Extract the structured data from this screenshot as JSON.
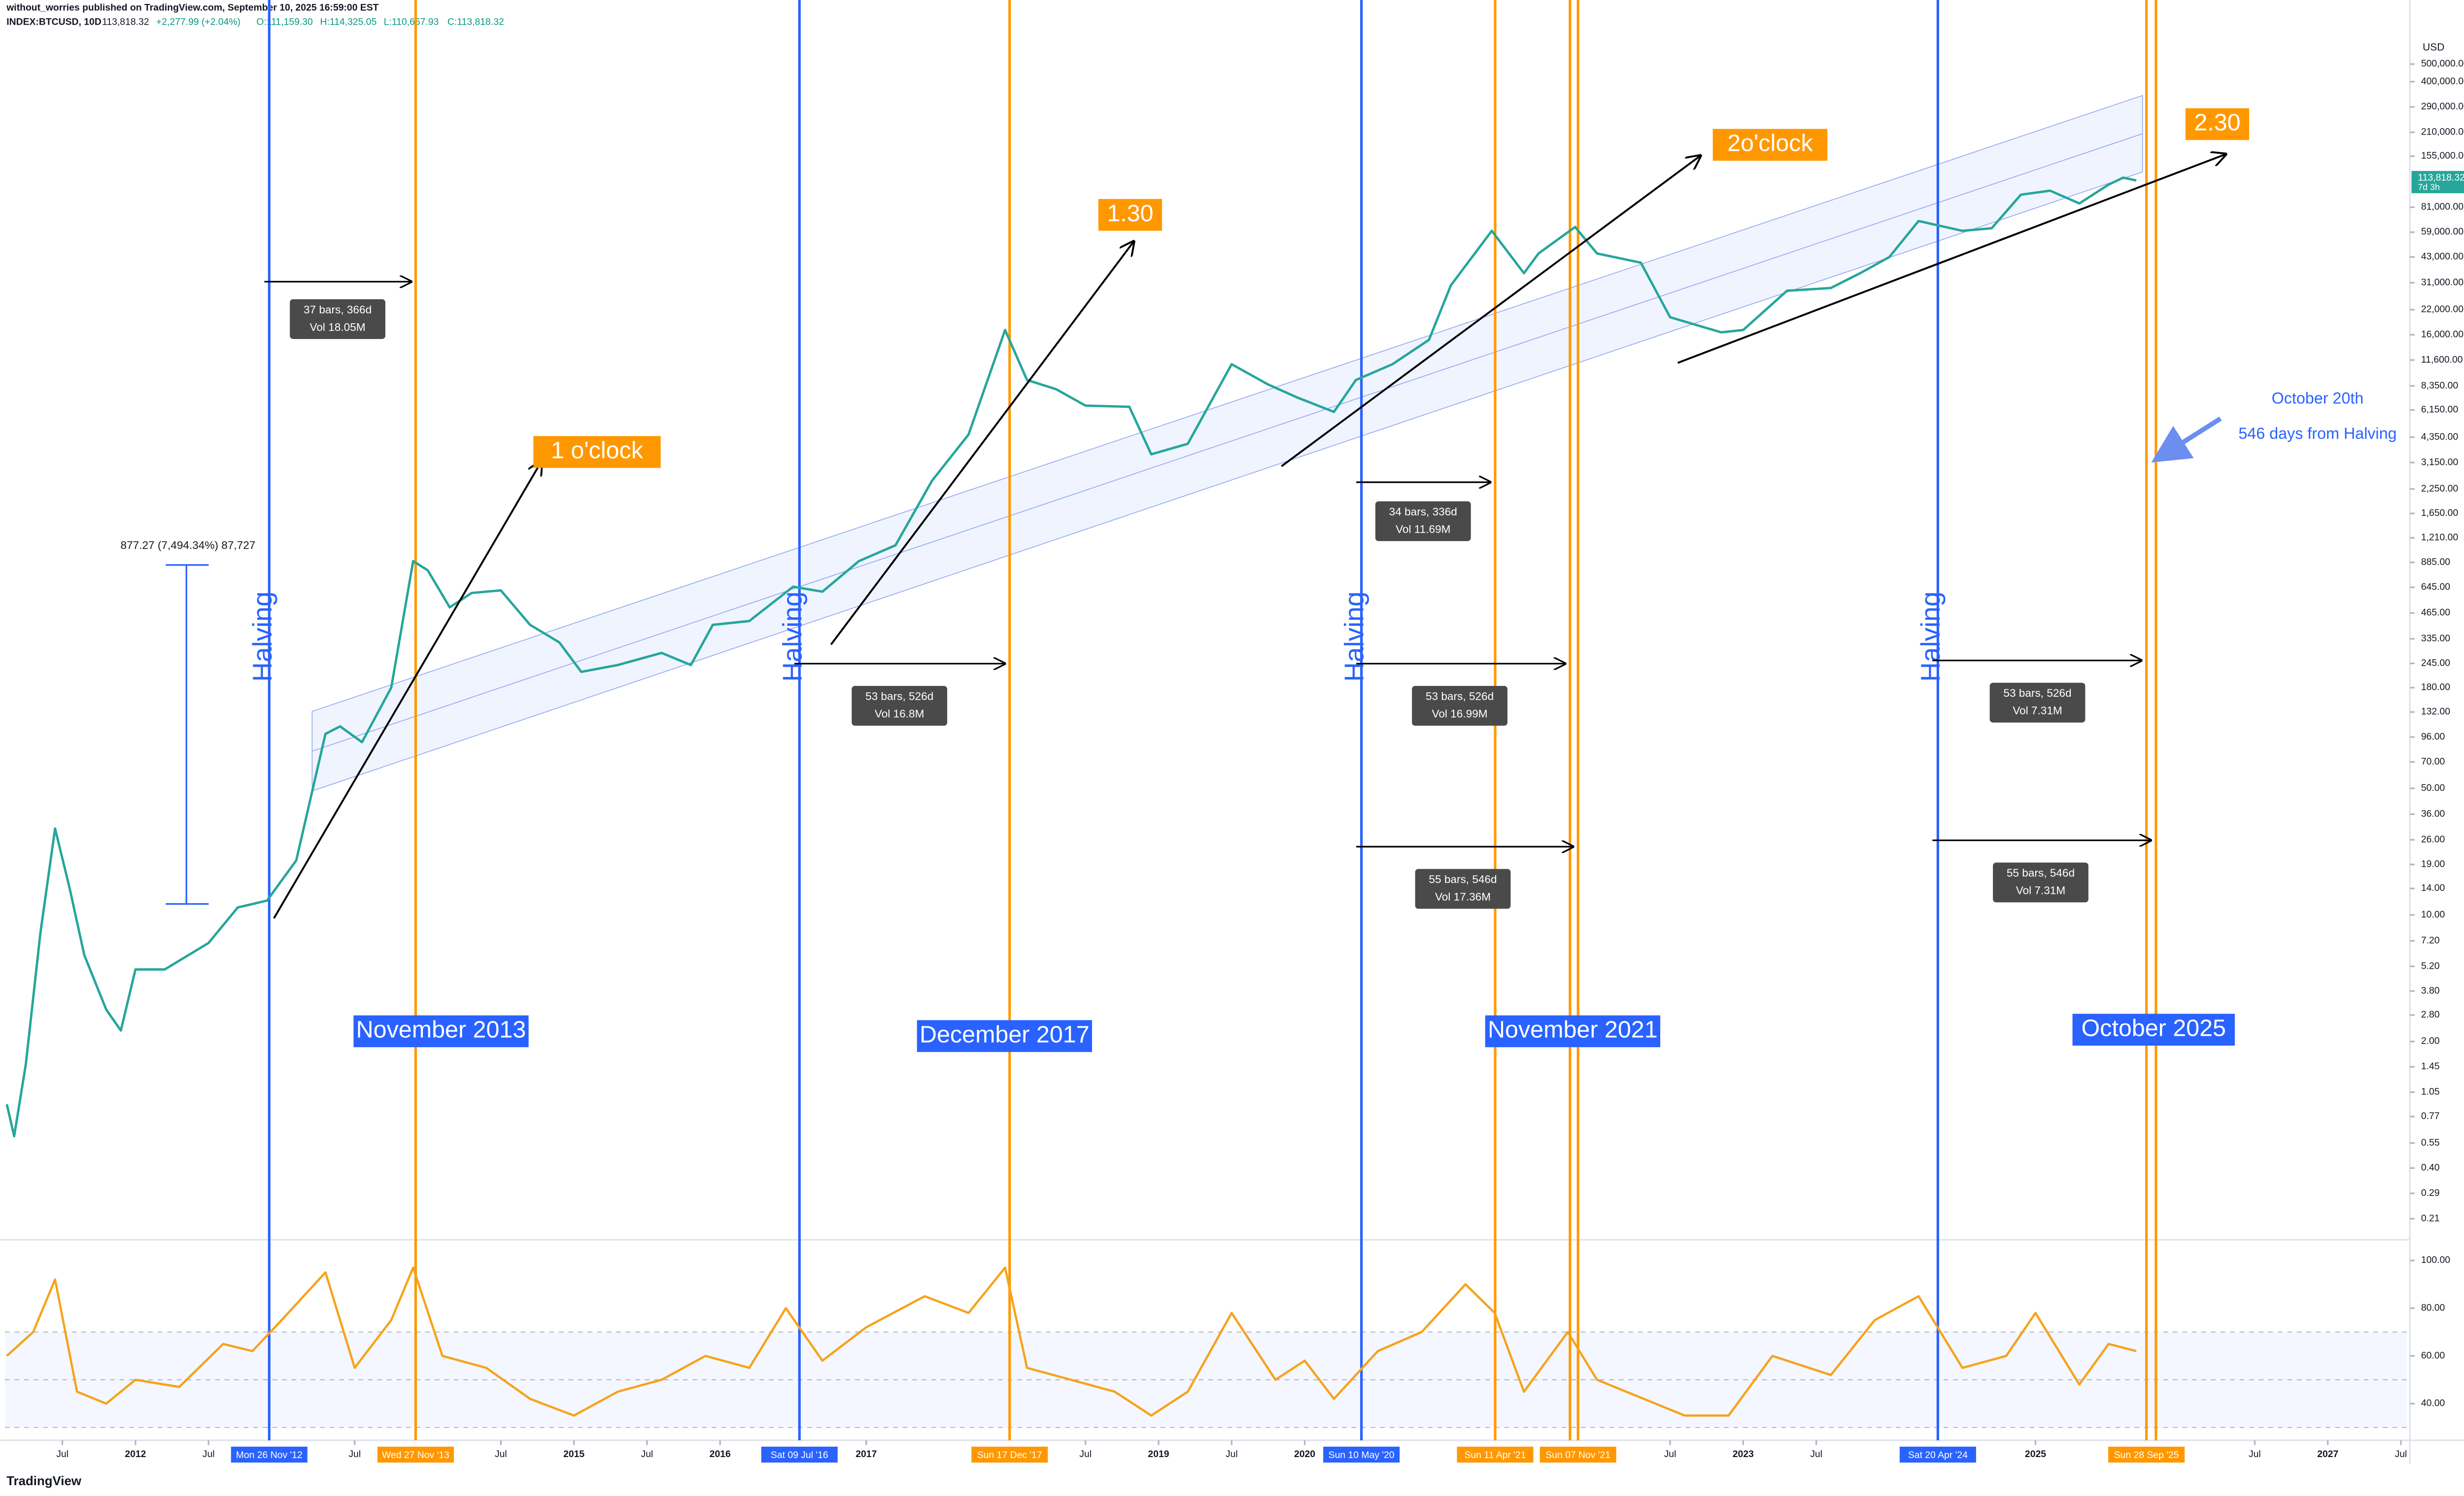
{
  "header": {
    "byline": "without_worries published on TradingView.com, September 10, 2025 16:59:00 EST",
    "symbol": "INDEX:BTCUSD, 10D",
    "last": "113,818.32",
    "change": "+2,277.99 (+2.04%)",
    "open": "O:111,159.30",
    "high": "H:114,325.05",
    "low": "L:110,657.93",
    "close": "C:113,818.32"
  },
  "chart_data": [
    {
      "type": "line",
      "unit": "USD",
      "log_scale": true,
      "color": "#26a69a",
      "xlim": [
        2011.107,
        2027.54
      ],
      "ylim": [
        0.164,
        695000
      ],
      "x": [
        2011.12,
        2011.17,
        2011.25,
        2011.35,
        2011.45,
        2011.55,
        2011.65,
        2011.8,
        2011.9,
        2012.0,
        2012.2,
        2012.5,
        2012.7,
        2012.9,
        2013.1,
        2013.3,
        2013.4,
        2013.55,
        2013.75,
        2013.9,
        2014.0,
        2014.15,
        2014.3,
        2014.5,
        2014.7,
        2014.9,
        2015.05,
        2015.3,
        2015.6,
        2015.8,
        2015.95,
        2016.2,
        2016.5,
        2016.7,
        2016.95,
        2017.2,
        2017.45,
        2017.7,
        2017.95,
        2018.1,
        2018.3,
        2018.5,
        2018.8,
        2018.95,
        2019.2,
        2019.5,
        2019.75,
        2019.95,
        2020.2,
        2020.35,
        2020.6,
        2020.85,
        2021.0,
        2021.28,
        2021.5,
        2021.6,
        2021.85,
        2022.0,
        2022.3,
        2022.5,
        2022.85,
        2023.0,
        2023.3,
        2023.6,
        2023.8,
        2024.0,
        2024.2,
        2024.5,
        2024.7,
        2024.9,
        2025.1,
        2025.3,
        2025.5,
        2025.6,
        2025.69
      ],
      "values": [
        0.9,
        0.6,
        1.5,
        8,
        30,
        14,
        6,
        3,
        2.3,
        5,
        5,
        7,
        11,
        12,
        20,
        100,
        110,
        90,
        180,
        900,
        800,
        500,
        600,
        620,
        400,
        320,
        220,
        240,
        280,
        240,
        400,
        420,
        650,
        610,
        900,
        1100,
        2500,
        4500,
        17000,
        9000,
        8000,
        6500,
        6400,
        3500,
        4000,
        11000,
        8500,
        7200,
        6000,
        9000,
        11000,
        15000,
        30000,
        60000,
        35000,
        45000,
        63000,
        45000,
        40000,
        20000,
        16500,
        17000,
        28000,
        29000,
        35000,
        43000,
        68000,
        60000,
        62000,
        95000,
        100000,
        85000,
        108000,
        118000,
        113818.32
      ],
      "last_price": {
        "value": 113818.32,
        "label": "113,818.32",
        "countdown": "7d 3h"
      },
      "xticks": [
        {
          "value": 2011.5,
          "label": "Jul"
        },
        2012,
        {
          "value": 2012.5,
          "label": "Jul"
        },
        {
          "value": 2013.5,
          "label": "Jul"
        },
        {
          "value": 2014.5,
          "label": "Jul"
        },
        2015,
        {
          "value": 2015.5,
          "label": "Jul"
        },
        2016,
        2017,
        {
          "value": 2018.5,
          "label": "Jul"
        },
        2019,
        {
          "value": 2019.5,
          "label": "Jul"
        },
        2020,
        {
          "value": 2022.5,
          "label": "Jul"
        },
        2023,
        {
          "value": 2023.5,
          "label": "Jul"
        },
        2025,
        {
          "value": 2026.5,
          "label": "Jul"
        },
        2027,
        {
          "value": 2027.5,
          "label": "Jul"
        }
      ],
      "yticks": [
        {
          "value": 500000,
          "label": "500,000.00"
        },
        {
          "value": 400000,
          "label": "400,000.00"
        },
        {
          "value": 290000,
          "label": "290,000.00"
        },
        {
          "value": 210000,
          "label": "210,000.00"
        },
        {
          "value": 155000,
          "label": "155,000.00"
        },
        {
          "value": 81000,
          "label": "81,000.00"
        },
        {
          "value": 59000,
          "label": "59,000.00"
        },
        {
          "value": 43000,
          "label": "43,000.00"
        },
        {
          "value": 31000,
          "label": "31,000.00"
        },
        {
          "value": 22000,
          "label": "22,000.00"
        },
        {
          "value": 16000,
          "label": "16,000.00"
        },
        {
          "value": 11600,
          "label": "11,600.00"
        },
        {
          "value": 8350,
          "label": "8,350.00"
        },
        {
          "value": 6150,
          "label": "6,150.00"
        },
        {
          "value": 4350,
          "label": "4,350.00"
        },
        {
          "value": 3150,
          "label": "3,150.00"
        },
        {
          "value": 2250,
          "label": "2,250.00"
        },
        {
          "value": 1650,
          "label": "1,650.00"
        },
        {
          "value": 1210,
          "label": "1,210.00"
        },
        {
          "value": 885,
          "label": "885.00"
        },
        {
          "value": 645,
          "label": "645.00"
        },
        {
          "value": 465,
          "label": "465.00"
        },
        {
          "value": 335,
          "label": "335.00"
        },
        {
          "value": 245,
          "label": "245.00"
        },
        {
          "value": 180,
          "label": "180.00"
        },
        {
          "value": 132,
          "label": "132.00"
        },
        {
          "value": 96,
          "label": "96.00"
        },
        {
          "value": 70,
          "label": "70.00"
        },
        {
          "value": 50,
          "label": "50.00"
        },
        {
          "value": 36,
          "label": "36.00"
        },
        {
          "value": 26,
          "label": "26.00"
        },
        {
          "value": 19,
          "label": "19.00"
        },
        {
          "value": 14,
          "label": "14.00"
        },
        {
          "value": 10,
          "label": "10.00"
        },
        {
          "value": 7.2,
          "label": "7.20"
        },
        {
          "value": 5.2,
          "label": "5.20"
        },
        {
          "value": 3.8,
          "label": "3.80"
        },
        {
          "value": 2.8,
          "label": "2.80"
        },
        {
          "value": 2,
          "label": "2.00"
        },
        {
          "value": 1.45,
          "label": "1.45"
        },
        {
          "value": 1.05,
          "label": "1.05"
        },
        {
          "value": 0.77,
          "label": "0.77"
        },
        {
          "value": 0.55,
          "label": "0.55"
        },
        {
          "value": 0.4,
          "label": "0.40"
        },
        {
          "value": 0.29,
          "label": "0.29"
        },
        {
          "value": 0.21,
          "label": "0.21"
        }
      ],
      "markers": [
        {
          "value": 2012.915,
          "label": "Mon 26 Nov '12",
          "color": "#2962ff"
        },
        {
          "value": 2013.917,
          "label": "Wed 27 Nov '13",
          "color": "#ff9800"
        },
        {
          "value": 2016.543,
          "label": "Sat 09 Jul '16",
          "color": "#2962ff"
        },
        {
          "value": 2017.981,
          "label": "Sun 17 Dec '17",
          "color": "#ff9800"
        },
        {
          "value": 2020.388,
          "label": "Sun 10 May '20",
          "color": "#2962ff"
        },
        {
          "value": 2021.303,
          "label": "Sun 11 Apr '21",
          "color": "#ff9800"
        },
        {
          "value": 2021.87,
          "label": "Sun 07 Nov '21",
          "color": "#ff9800"
        },
        {
          "value": 2024.332,
          "label": "Sat 20 Apr '24",
          "color": "#2962ff"
        },
        {
          "value": 2025.759,
          "label": "Sun 28 Sep '25",
          "color": "#ff9800"
        }
      ],
      "extra_lines": [
        {
          "value": 2021.815,
          "color": "#ff9800"
        },
        {
          "value": 2025.824,
          "color": "#ff9800"
        }
      ]
    },
    {
      "type": "line",
      "color": "#f7a21b",
      "ylim": [
        29.3,
        108
      ],
      "bands": [
        30,
        50,
        70
      ],
      "x": [
        2011.12,
        2011.3,
        2011.45,
        2011.6,
        2011.8,
        2012.0,
        2012.3,
        2012.6,
        2012.8,
        2013.0,
        2013.3,
        2013.5,
        2013.75,
        2013.9,
        2014.1,
        2014.4,
        2014.7,
        2015.0,
        2015.3,
        2015.6,
        2015.9,
        2016.2,
        2016.45,
        2016.7,
        2017.0,
        2017.4,
        2017.7,
        2017.95,
        2018.1,
        2018.4,
        2018.7,
        2018.95,
        2019.2,
        2019.5,
        2019.8,
        2020.0,
        2020.2,
        2020.5,
        2020.8,
        2021.1,
        2021.3,
        2021.5,
        2021.8,
        2022.0,
        2022.4,
        2022.6,
        2022.9,
        2023.2,
        2023.6,
        2023.9,
        2024.2,
        2024.5,
        2024.8,
        2025.0,
        2025.3,
        2025.5,
        2025.69
      ],
      "values": [
        60,
        70,
        92,
        45,
        40,
        50,
        47,
        65,
        62,
        75,
        95,
        55,
        75,
        97,
        60,
        55,
        42,
        35,
        45,
        50,
        60,
        55,
        80,
        58,
        72,
        85,
        78,
        97,
        55,
        50,
        45,
        35,
        45,
        78,
        50,
        58,
        42,
        62,
        70,
        90,
        78,
        45,
        70,
        50,
        40,
        35,
        35,
        60,
        52,
        75,
        85,
        55,
        60,
        78,
        48,
        65,
        62
      ],
      "yticks": [
        {
          "value": 100,
          "label": "100.00"
        },
        {
          "value": 80,
          "label": "80.00"
        },
        {
          "value": 60,
          "label": "60.00"
        },
        {
          "value": 40,
          "label": "40.00"
        }
      ]
    }
  ],
  "annotations": {
    "halving": "Halving",
    "cycle_tops": [
      "November 2013",
      "December 2017",
      "November 2021",
      "October 2025"
    ],
    "clock": [
      "1 o'clock",
      "1.30",
      "2o'clock",
      "2.30"
    ],
    "measures": [
      {
        "bars": "37 bars, 366d",
        "vol": "Vol 18.05M"
      },
      {
        "bars": "53 bars, 526d",
        "vol": "Vol 16.8M"
      },
      {
        "bars": "34 bars, 336d",
        "vol": "Vol 11.69M"
      },
      {
        "bars": "53 bars, 526d",
        "vol": "Vol 16.99M"
      },
      {
        "bars": "55 bars, 546d",
        "vol": "Vol 17.36M"
      },
      {
        "bars": "53 bars, 526d",
        "vol": "Vol 7.31M"
      },
      {
        "bars": "55 bars, 546d",
        "vol": "Vol 7.31M"
      }
    ],
    "range_label": "877.27 (7,494.34%) 87,727",
    "note": [
      "October 20th",
      "546 days from Halving"
    ]
  },
  "footer": {
    "logo": "TradingView"
  }
}
